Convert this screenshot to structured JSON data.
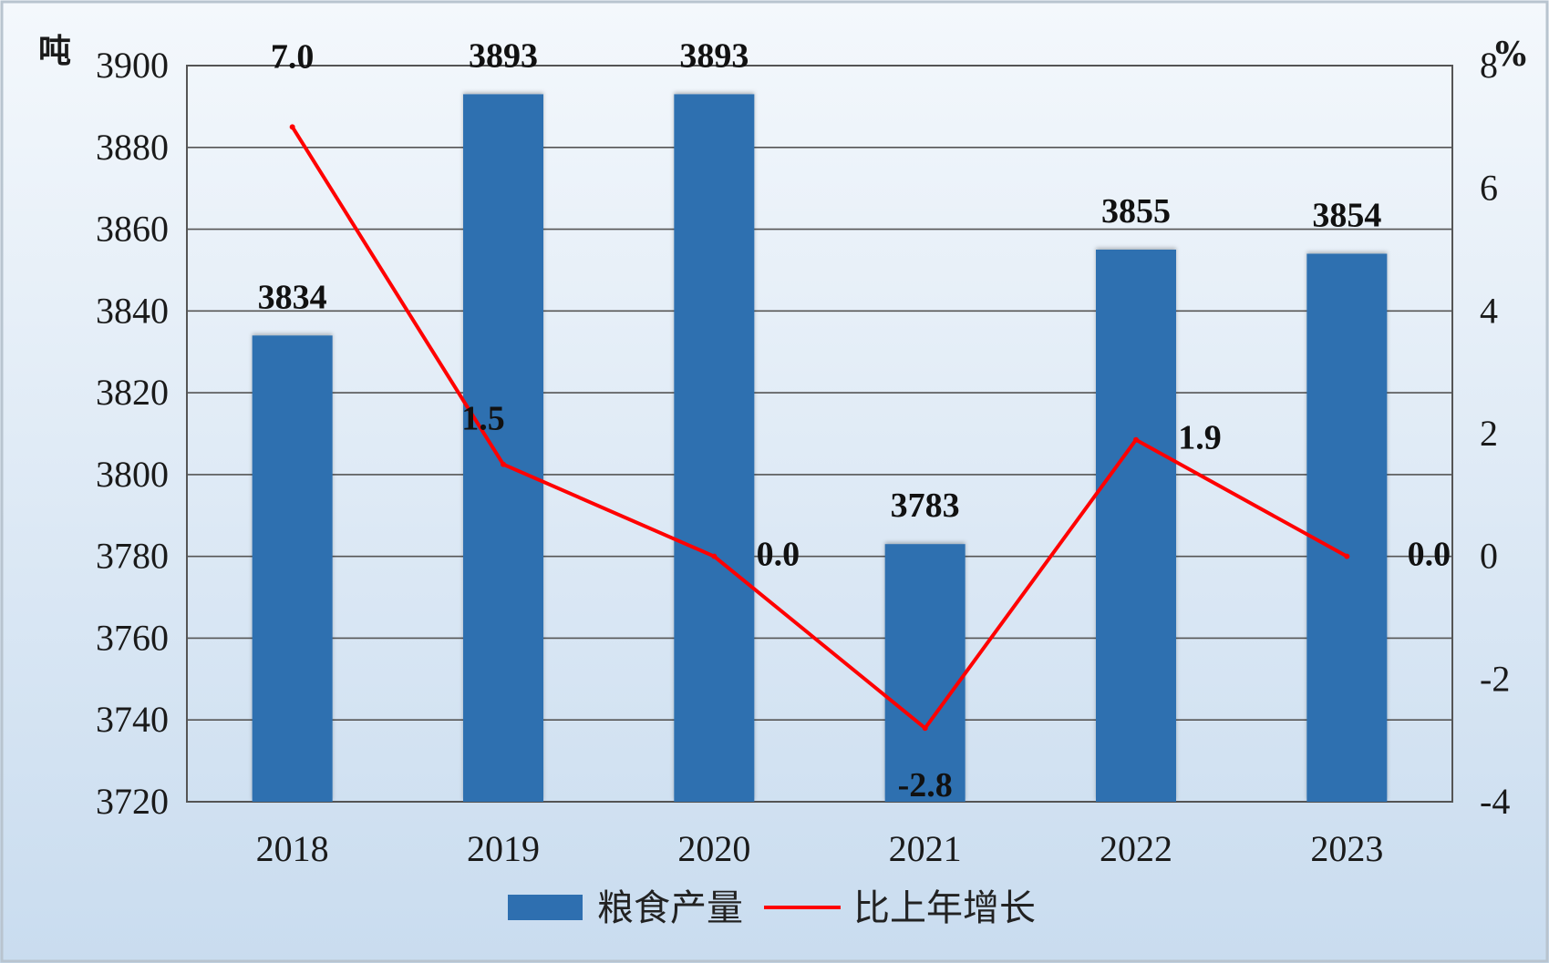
{
  "chart_data": {
    "type": "bar",
    "categories": [
      "2018",
      "2019",
      "2020",
      "2021",
      "2022",
      "2023"
    ],
    "series": [
      {
        "name": "粮食产量",
        "type": "bar",
        "axis": "left",
        "values": [
          3834,
          3893,
          3893,
          3783,
          3855,
          3854
        ],
        "labels": [
          "3834",
          "3893",
          "3893",
          "3783",
          "3855",
          "3854"
        ],
        "color": "#2e6fb0"
      },
      {
        "name": "比上年增长",
        "type": "line",
        "axis": "right",
        "values": [
          7.0,
          1.5,
          0.0,
          -2.8,
          1.9,
          0.0
        ],
        "labels": [
          "7.0",
          "1.5",
          "0.0",
          "-2.8",
          "1.9",
          "0.0"
        ],
        "color": "#ff0000"
      }
    ],
    "y_left": {
      "unit": "吨",
      "ylim": [
        3720,
        3900
      ],
      "ticks": [
        "3720",
        "3740",
        "3760",
        "3780",
        "3800",
        "3820",
        "3840",
        "3860",
        "3880",
        "3900"
      ]
    },
    "y_right": {
      "unit": "%",
      "ylim": [
        -4,
        8
      ],
      "ticks": [
        "-4",
        "-2",
        "0",
        "2",
        "4",
        "6",
        "8"
      ]
    },
    "grid": true,
    "legend": "bottom",
    "colors": {
      "background_top": "#f4f8fc",
      "background_bottom": "#c9dcef",
      "grid": "#555555",
      "bar": "#2e6fb0",
      "line": "#ff0000"
    }
  }
}
